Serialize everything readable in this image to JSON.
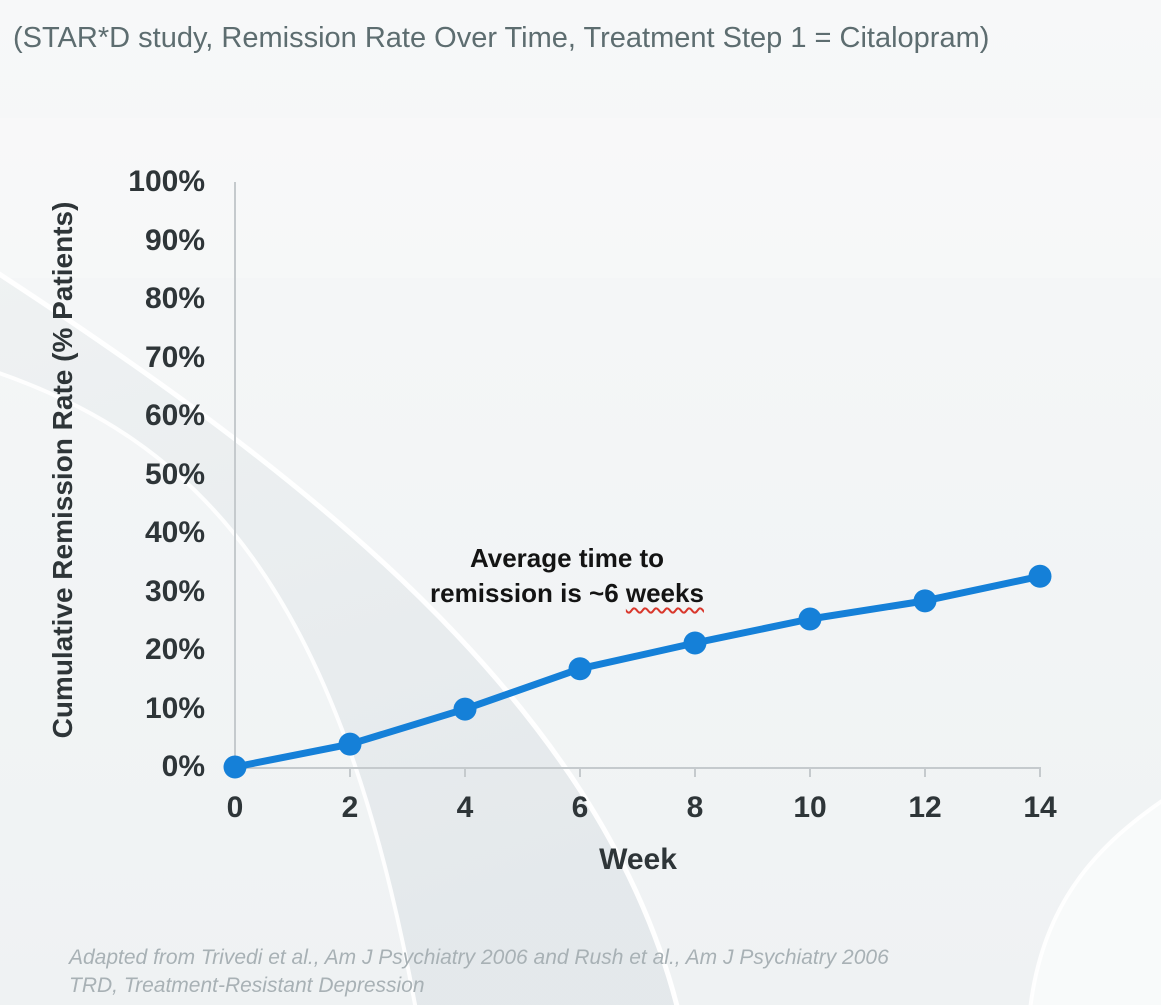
{
  "title": "(STAR*D study, Remission Rate Over Time, Treatment Step 1 = Citalopram)",
  "chart_data": {
    "type": "line",
    "x": [
      0,
      2,
      4,
      6,
      8,
      10,
      12,
      14
    ],
    "x_tick_labels": [
      "0",
      "2",
      "4",
      "6",
      "8",
      "10",
      "12",
      "14"
    ],
    "series": [
      {
        "name": "Cumulative remission rate",
        "values": [
          0,
          3.9,
          9.9,
          16.8,
          21.2,
          25.3,
          28.4,
          32.6
        ]
      }
    ],
    "xlabel": "Week",
    "ylabel": "Cumulative Remission Rate (% Patients)",
    "ylim": [
      0,
      100
    ],
    "y_tick_step": 10,
    "y_tick_labels": [
      "0%",
      "10%",
      "20%",
      "30%",
      "40%",
      "50%",
      "60%",
      "70%",
      "80%",
      "90%",
      "100%"
    ],
    "grid": false,
    "legend": "none",
    "line_color": "#1580d8",
    "marker": "circle",
    "annotation": {
      "line1": "Average time to",
      "line2_prefix": "remission is ~6 ",
      "line2_underlined_word": "weeks",
      "underline_color": "#d9372c"
    }
  },
  "footer": {
    "line1": "Adapted from Trivedi et al., Am J Psychiatry 2006 and Rush et al., Am J Psychiatry 2006",
    "line2": "TRD, Treatment-Resistant Depression"
  },
  "colors": {
    "axis": "#c5cacd",
    "tick_text": "#2e3538",
    "title_text": "#5d6d70",
    "footer_text": "#a8b1b5"
  }
}
